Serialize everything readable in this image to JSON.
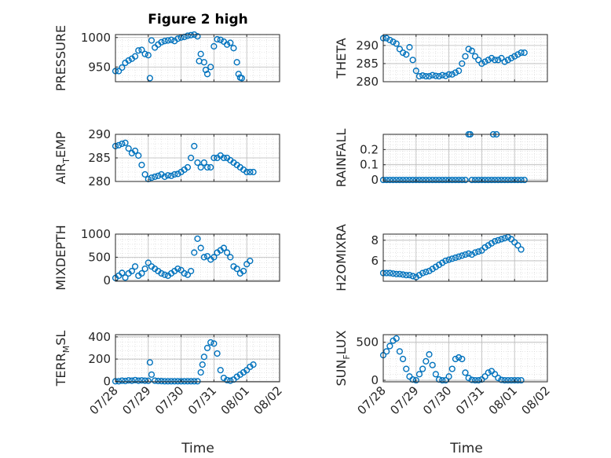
{
  "title": "Figure 2 high",
  "xlabel": "Time",
  "colors": {
    "marker": "#0072BD",
    "axis": "#262626",
    "grid": "#b8b8b8",
    "background": "#ffffff"
  },
  "chart_data": [
    {
      "type": "scatter",
      "name_main": "PRESSURE",
      "name_sub": "",
      "ylim": [
        925,
        1005
      ],
      "yticks": [
        950,
        1000
      ],
      "grid": true,
      "x": [
        0,
        0.1,
        0.2,
        0.3,
        0.4,
        0.5,
        0.6,
        0.7,
        0.8,
        0.9,
        1.0,
        1.05,
        1.1,
        1.2,
        1.3,
        1.4,
        1.5,
        1.6,
        1.7,
        1.8,
        1.9,
        2.0,
        2.1,
        2.2,
        2.3,
        2.4,
        2.5,
        2.55,
        2.6,
        2.7,
        2.75,
        2.8,
        2.9,
        3.0,
        3.1,
        3.2,
        3.3,
        3.4,
        3.5,
        3.6,
        3.7,
        3.75,
        3.8,
        3.85
      ],
      "y": [
        943,
        943,
        949,
        957,
        961,
        964,
        968,
        978,
        979,
        972,
        970,
        931,
        995,
        983,
        988,
        992,
        994,
        995,
        996,
        994,
        998,
        1000,
        1001,
        1003,
        1004,
        1005,
        1002,
        960,
        972,
        958,
        945,
        938,
        950,
        985,
        997,
        996,
        993,
        988,
        991,
        982,
        958,
        938,
        932,
        931
      ]
    },
    {
      "type": "scatter",
      "name_main": "THETA",
      "name_sub": "",
      "ylim": [
        280,
        293
      ],
      "yticks": [
        280,
        285,
        290
      ],
      "grid": true,
      "x": [
        0,
        0.1,
        0.2,
        0.3,
        0.4,
        0.5,
        0.6,
        0.7,
        0.8,
        0.9,
        1.0,
        1.1,
        1.2,
        1.3,
        1.4,
        1.5,
        1.6,
        1.7,
        1.8,
        1.9,
        2.0,
        2.1,
        2.2,
        2.3,
        2.4,
        2.5,
        2.6,
        2.7,
        2.8,
        2.9,
        3.0,
        3.1,
        3.2,
        3.3,
        3.4,
        3.5,
        3.6,
        3.7,
        3.8,
        3.9,
        4.0,
        4.1,
        4.2,
        4.3
      ],
      "y": [
        292,
        292,
        291.5,
        291,
        290.5,
        289,
        288,
        287.5,
        289.5,
        286,
        283,
        281.5,
        281.7,
        281.5,
        281.5,
        281.8,
        281.6,
        281.5,
        281.8,
        281.6,
        282,
        282,
        282.5,
        283,
        285,
        287,
        289,
        288.5,
        287,
        286,
        285,
        285.5,
        286,
        286.5,
        286,
        286,
        286.5,
        285.5,
        286,
        286.5,
        287,
        287.5,
        288,
        288
      ]
    },
    {
      "type": "scatter",
      "name_main": "AIR",
      "name_sub": "T",
      "name_tail": "EMP",
      "ylim": [
        280,
        290
      ],
      "yticks": [
        280,
        285,
        290
      ],
      "grid": true,
      "x": [
        0,
        0.1,
        0.2,
        0.3,
        0.4,
        0.5,
        0.6,
        0.7,
        0.8,
        0.9,
        1.0,
        1.1,
        1.2,
        1.3,
        1.4,
        1.5,
        1.6,
        1.7,
        1.8,
        1.9,
        2.0,
        2.1,
        2.2,
        2.3,
        2.4,
        2.5,
        2.6,
        2.7,
        2.8,
        2.9,
        3.0,
        3.1,
        3.2,
        3.3,
        3.4,
        3.5,
        3.6,
        3.7,
        3.8,
        3.9,
        4.0,
        4.1,
        4.2
      ],
      "y": [
        287.5,
        287.7,
        288,
        288.2,
        287,
        286,
        286.5,
        285.5,
        283.5,
        281.5,
        280.5,
        280.8,
        281,
        281.2,
        281.5,
        281,
        281.3,
        281.2,
        281.5,
        281.6,
        282,
        282.5,
        283,
        285,
        287.5,
        284,
        283,
        284,
        283,
        283,
        285,
        285,
        285.5,
        285,
        285,
        284.5,
        284,
        283.5,
        283,
        282.5,
        282,
        282,
        282
      ]
    },
    {
      "type": "scatter",
      "name_main": "RAINFALL",
      "name_sub": "",
      "ylim": [
        -0.01,
        0.3
      ],
      "yticks": [
        0,
        0.1,
        0.2
      ],
      "ytick_labels": [
        "0",
        "0.1",
        "0.2"
      ],
      "grid": true,
      "x": [
        0,
        0.1,
        0.2,
        0.3,
        0.4,
        0.5,
        0.6,
        0.7,
        0.8,
        0.9,
        1.0,
        1.1,
        1.2,
        1.3,
        1.4,
        1.5,
        1.6,
        1.7,
        1.8,
        1.9,
        2.0,
        2.1,
        2.2,
        2.3,
        2.4,
        2.5,
        2.6,
        2.65,
        2.7,
        2.8,
        2.9,
        3.0,
        3.1,
        3.2,
        3.3,
        3.35,
        3.4,
        3.45,
        3.5,
        3.6,
        3.7,
        3.8,
        3.9,
        4.0,
        4.1,
        4.2,
        4.3
      ],
      "y": [
        0,
        0,
        0,
        0,
        0,
        0,
        0,
        0,
        0,
        0,
        0,
        0,
        0,
        0,
        0,
        0,
        0,
        0,
        0,
        0,
        0,
        0,
        0,
        0,
        0,
        0,
        0.3,
        0.3,
        0,
        0,
        0,
        0,
        0,
        0,
        0,
        0.3,
        0,
        0.3,
        0,
        0,
        0,
        0,
        0,
        0,
        0,
        0,
        0
      ]
    },
    {
      "type": "scatter",
      "name_main": "MIXDEPTH",
      "name_sub": "",
      "ylim": [
        -20,
        1000
      ],
      "yticks": [
        0,
        500,
        1000
      ],
      "grid": true,
      "x": [
        0,
        0.1,
        0.2,
        0.3,
        0.4,
        0.5,
        0.6,
        0.7,
        0.8,
        0.9,
        1.0,
        1.1,
        1.2,
        1.3,
        1.4,
        1.5,
        1.6,
        1.7,
        1.8,
        1.9,
        2.0,
        2.1,
        2.2,
        2.3,
        2.4,
        2.5,
        2.6,
        2.7,
        2.8,
        2.9,
        3.0,
        3.1,
        3.2,
        3.3,
        3.4,
        3.5,
        3.6,
        3.7,
        3.8,
        3.9,
        4.0,
        4.1
      ],
      "y": [
        50,
        100,
        160,
        60,
        150,
        200,
        300,
        100,
        150,
        250,
        380,
        300,
        250,
        200,
        150,
        120,
        100,
        150,
        200,
        250,
        220,
        150,
        120,
        200,
        600,
        900,
        700,
        500,
        520,
        450,
        500,
        600,
        650,
        700,
        600,
        500,
        300,
        250,
        150,
        200,
        350,
        420
      ]
    },
    {
      "type": "scatter",
      "name_main": "H2OMIXRA",
      "name_sub": "",
      "ylim": [
        4,
        8.6
      ],
      "yticks": [
        6,
        8
      ],
      "grid": true,
      "x": [
        0,
        0.1,
        0.2,
        0.3,
        0.4,
        0.5,
        0.6,
        0.7,
        0.8,
        0.9,
        1.0,
        1.1,
        1.2,
        1.3,
        1.4,
        1.5,
        1.6,
        1.7,
        1.8,
        1.9,
        2.0,
        2.1,
        2.2,
        2.3,
        2.4,
        2.5,
        2.6,
        2.7,
        2.8,
        2.9,
        3.0,
        3.1,
        3.2,
        3.3,
        3.4,
        3.5,
        3.6,
        3.7,
        3.8,
        3.9,
        4.0,
        4.1,
        4.2
      ],
      "y": [
        4.8,
        4.8,
        4.8,
        4.75,
        4.7,
        4.7,
        4.65,
        4.6,
        4.6,
        4.5,
        4.4,
        4.6,
        4.8,
        4.9,
        5.0,
        5.2,
        5.4,
        5.6,
        5.8,
        6.0,
        6.1,
        6.2,
        6.3,
        6.4,
        6.5,
        6.6,
        6.7,
        6.6,
        6.8,
        6.9,
        7.0,
        7.3,
        7.5,
        7.7,
        7.9,
        8.0,
        8.1,
        8.2,
        8.3,
        8.1,
        7.8,
        7.5,
        7.1
      ]
    },
    {
      "type": "scatter",
      "name_main": "TERR",
      "name_sub": "M",
      "name_tail": "SL",
      "ylim": [
        -5,
        420
      ],
      "yticks": [
        0,
        200,
        400
      ],
      "grid": true,
      "x": [
        0,
        0.1,
        0.2,
        0.3,
        0.4,
        0.5,
        0.6,
        0.7,
        0.8,
        0.9,
        1.0,
        1.05,
        1.1,
        1.2,
        1.3,
        1.4,
        1.5,
        1.6,
        1.7,
        1.8,
        1.9,
        2.0,
        2.1,
        2.2,
        2.3,
        2.4,
        2.5,
        2.6,
        2.65,
        2.7,
        2.8,
        2.9,
        3.0,
        3.1,
        3.2,
        3.3,
        3.4,
        3.5,
        3.6,
        3.7,
        3.8,
        3.9,
        4.0,
        4.1,
        4.2
      ],
      "y": [
        0,
        0,
        5,
        2,
        8,
        5,
        10,
        5,
        8,
        5,
        4,
        170,
        60,
        5,
        2,
        1,
        0,
        0,
        0,
        0,
        0,
        0,
        0,
        0,
        0,
        0,
        0,
        80,
        150,
        220,
        300,
        350,
        340,
        250,
        100,
        30,
        10,
        5,
        15,
        40,
        60,
        80,
        100,
        130,
        150
      ]
    },
    {
      "type": "scatter",
      "name_main": "SUN",
      "name_sub": "F",
      "name_tail": "LUX",
      "ylim": [
        -20,
        600
      ],
      "yticks": [
        0,
        500
      ],
      "grid": true,
      "x": [
        0,
        0.1,
        0.2,
        0.3,
        0.4,
        0.5,
        0.6,
        0.7,
        0.8,
        0.9,
        1.0,
        1.1,
        1.2,
        1.3,
        1.4,
        1.5,
        1.6,
        1.7,
        1.8,
        1.9,
        2.0,
        2.1,
        2.2,
        2.3,
        2.4,
        2.5,
        2.6,
        2.7,
        2.8,
        2.9,
        3.0,
        3.1,
        3.2,
        3.3,
        3.4,
        3.5,
        3.6,
        3.7,
        3.8,
        3.9,
        4.0,
        4.1,
        4.2
      ],
      "y": [
        330,
        380,
        450,
        520,
        550,
        380,
        280,
        150,
        50,
        10,
        0,
        80,
        150,
        250,
        340,
        200,
        80,
        10,
        0,
        0,
        50,
        150,
        280,
        300,
        280,
        100,
        30,
        5,
        0,
        0,
        10,
        50,
        100,
        120,
        80,
        30,
        5,
        0,
        0,
        0,
        0,
        0,
        0
      ]
    }
  ],
  "xticks": {
    "values": [
      0,
      1,
      2,
      3,
      4,
      5
    ],
    "labels": [
      "07/28",
      "07/29",
      "07/30",
      "07/31",
      "08/01",
      "08/02"
    ]
  },
  "xlim": [
    0,
    5
  ]
}
